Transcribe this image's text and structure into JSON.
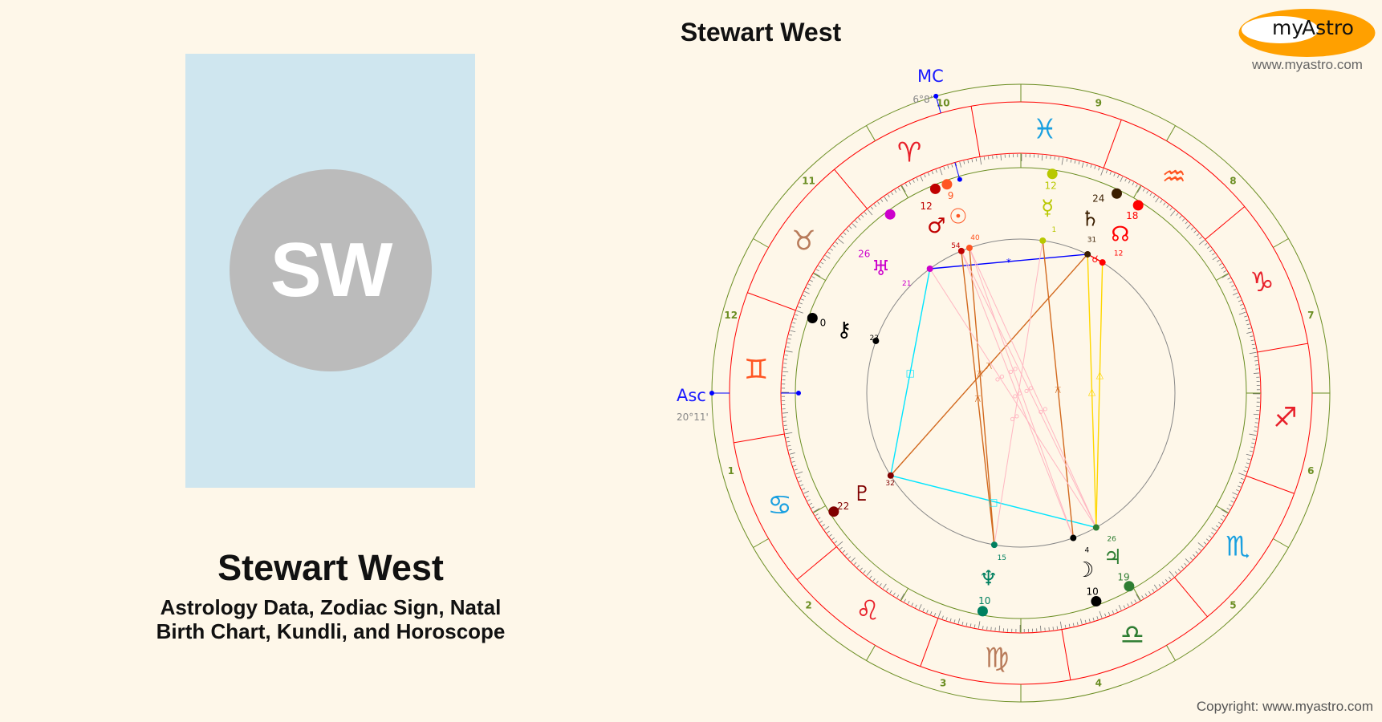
{
  "profile": {
    "initials": "SW",
    "name": "Stewart West",
    "subtitle_line1": "Astrology Data, Zodiac Sign, Natal",
    "subtitle_line2": "Birth Chart, Kundli, and Horoscope"
  },
  "chart": {
    "title": "Stewart West",
    "asc_label": "Asc",
    "asc_value": "20°11'",
    "asc_longitude": 80.18,
    "mc_label": "MC",
    "mc_value": "6°8'",
    "mc_longitude": 6.13,
    "house_numbers": [
      "1",
      "2",
      "3",
      "4",
      "5",
      "6",
      "7",
      "8",
      "9",
      "10",
      "11",
      "12"
    ],
    "signs": [
      {
        "name": "Aries",
        "glyph": "♈",
        "color": "#e8202a"
      },
      {
        "name": "Taurus",
        "glyph": "♉",
        "color": "#b87b5a"
      },
      {
        "name": "Gemini",
        "glyph": "♊",
        "color": "#ff5522"
      },
      {
        "name": "Cancer",
        "glyph": "♋",
        "color": "#1aa0e0"
      },
      {
        "name": "Leo",
        "glyph": "♌",
        "color": "#e8202a"
      },
      {
        "name": "Virgo",
        "glyph": "♍",
        "color": "#b87b5a"
      },
      {
        "name": "Libra",
        "glyph": "♎",
        "color": "#2e7d32"
      },
      {
        "name": "Scorpio",
        "glyph": "♏",
        "color": "#1aa0e0"
      },
      {
        "name": "Sagittarius",
        "glyph": "♐",
        "color": "#e8202a"
      },
      {
        "name": "Capricorn",
        "glyph": "♑",
        "color": "#e8202a"
      },
      {
        "name": "Aquarius",
        "glyph": "♒",
        "color": "#ff5522"
      },
      {
        "name": "Pisces",
        "glyph": "♓",
        "color": "#1aa0e0"
      }
    ],
    "planets": [
      {
        "name": "Sun",
        "glyph": "☉",
        "sign": "Aries",
        "deg": "9",
        "min": "40",
        "color": "#ff5522"
      },
      {
        "name": "Mars",
        "glyph": "♂",
        "sign": "Aries",
        "deg": "12",
        "min": "54",
        "color": "#c00000"
      },
      {
        "name": "Uranus",
        "glyph": "♅",
        "sign": "Aries",
        "deg": "26",
        "min": "21",
        "color": "#cc00cc"
      },
      {
        "name": "Chiron",
        "glyph": "⚷",
        "sign": "Gemini",
        "deg": "0",
        "min": "23",
        "color": "#000000"
      },
      {
        "name": "Pluto",
        "glyph": "♇",
        "sign": "Cancer",
        "deg": "22",
        "min": "32",
        "color": "#800000"
      },
      {
        "name": "Neptune",
        "glyph": "♆",
        "sign": "Virgo",
        "deg": "10",
        "min": "15",
        "color": "#008060"
      },
      {
        "name": "Moon",
        "glyph": "☽",
        "sign": "Libra",
        "deg": "10",
        "min": "4",
        "color": "#000000"
      },
      {
        "name": "Jupiter",
        "glyph": "♃",
        "sign": "Libra",
        "deg": "19",
        "min": "26",
        "color": "#2e7d32"
      },
      {
        "name": "North Node",
        "glyph": "☊",
        "sign": "Aquarius",
        "deg": "18",
        "min": "12",
        "color": "#ff0000"
      },
      {
        "name": "Saturn",
        "glyph": "♄",
        "sign": "Aquarius",
        "deg": "24",
        "min": "31",
        "color": "#3a1e00"
      },
      {
        "name": "Mercury",
        "glyph": "☿",
        "sign": "Pisces",
        "deg": "12",
        "min": "1",
        "color": "#b8c800"
      }
    ],
    "aspects": [
      {
        "a": "Uranus",
        "b": "Saturn",
        "type": "sextile",
        "color": "#0000ff",
        "symbol": "*"
      },
      {
        "a": "Uranus",
        "b": "Pluto",
        "type": "square",
        "color": "#00e5ff",
        "symbol": "□"
      },
      {
        "a": "Pluto",
        "b": "Jupiter",
        "type": "square",
        "color": "#00e5ff",
        "symbol": "□"
      },
      {
        "a": "Pluto",
        "b": "Saturn",
        "type": "quincunx",
        "color": "#d2691e",
        "symbol": "⚻"
      },
      {
        "a": "Mars",
        "b": "Neptune",
        "type": "quincunx",
        "color": "#d2691e",
        "symbol": "⚻"
      },
      {
        "a": "Sun",
        "b": "Neptune",
        "type": "quincunx",
        "color": "#d2691e",
        "symbol": "⚻"
      },
      {
        "a": "Mercury",
        "b": "Moon",
        "type": "quincunx",
        "color": "#d2691e",
        "symbol": "⚻"
      },
      {
        "a": "Saturn",
        "b": "Jupiter",
        "type": "trine",
        "color": "#ffd700",
        "symbol": "△"
      },
      {
        "a": "North Node",
        "b": "Jupiter",
        "type": "trine",
        "color": "#ffd700",
        "symbol": "△"
      },
      {
        "a": "Mars",
        "b": "Moon",
        "type": "opposition",
        "color": "#ffb6c1",
        "symbol": "☍"
      },
      {
        "a": "Sun",
        "b": "Moon",
        "type": "opposition",
        "color": "#ffb6c1",
        "symbol": "☍"
      },
      {
        "a": "Mars",
        "b": "Jupiter",
        "type": "opposition",
        "color": "#ffb6c1",
        "symbol": "☍"
      },
      {
        "a": "Sun",
        "b": "Jupiter",
        "type": "opposition",
        "color": "#ffb6c1",
        "symbol": "☍"
      },
      {
        "a": "Uranus",
        "b": "Jupiter",
        "type": "opposition",
        "color": "#ffb6c1",
        "symbol": "☍"
      },
      {
        "a": "Mercury",
        "b": "Neptune",
        "type": "opposition",
        "color": "#ffb6c1",
        "symbol": "☍"
      },
      {
        "a": "Saturn",
        "b": "North Node",
        "type": "conjunction",
        "color": "#ff0000",
        "symbol": "☌"
      }
    ]
  },
  "logo": {
    "text_my": "my",
    "text_astro": "Astro",
    "url": "www.myastro.com",
    "color": "#ffa000"
  },
  "footer": {
    "copyright": "Copyright: www.myastro.com"
  }
}
